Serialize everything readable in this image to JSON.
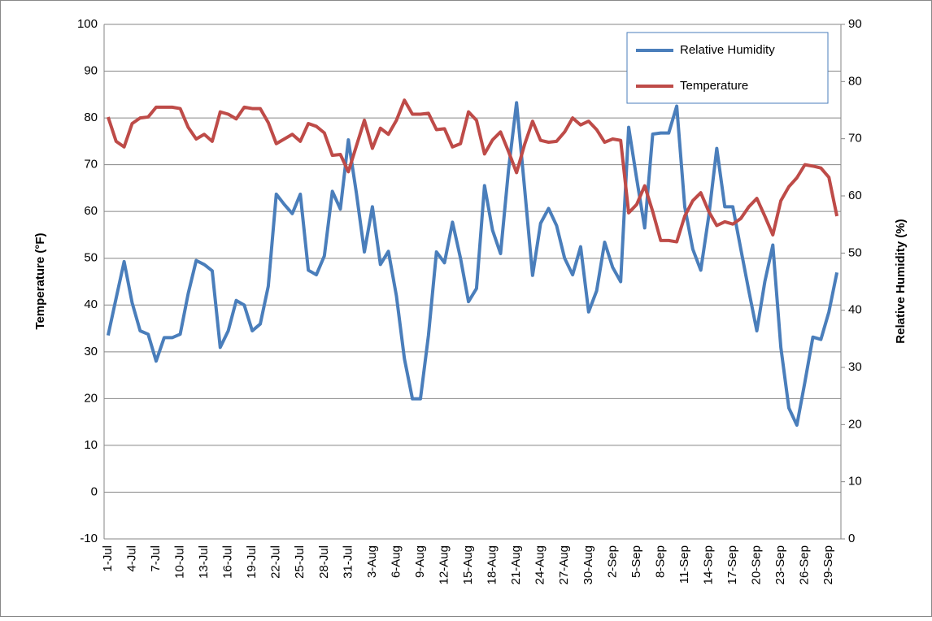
{
  "chart_data": {
    "type": "line",
    "categories": [
      "1-Jul",
      null,
      null,
      "4-Jul",
      null,
      null,
      "7-Jul",
      null,
      null,
      "10-Jul",
      null,
      null,
      "13-Jul",
      null,
      null,
      "16-Jul",
      null,
      null,
      "19-Jul",
      null,
      null,
      "22-Jul",
      null,
      null,
      "25-Jul",
      null,
      null,
      "28-Jul",
      null,
      null,
      "31-Jul",
      null,
      null,
      "3-Aug",
      null,
      null,
      "6-Aug",
      null,
      null,
      "9-Aug",
      null,
      null,
      "12-Aug",
      null,
      null,
      "15-Aug",
      null,
      null,
      "18-Aug",
      null,
      null,
      "21-Aug",
      null,
      null,
      "24-Aug",
      null,
      null,
      "27-Aug",
      null,
      null,
      "30-Aug",
      null,
      null,
      "2-Sep",
      null,
      null,
      "5-Sep",
      null,
      null,
      "8-Sep",
      null,
      null,
      "11-Sep",
      null,
      null,
      "14-Sep",
      null,
      null,
      "17-Sep",
      null,
      null,
      "20-Sep",
      null,
      null,
      "23-Sep",
      null,
      null,
      "26-Sep",
      null,
      null,
      "29-Sep",
      null
    ],
    "y_label": "Temperature (°F)",
    "y2_label": "Relative Humidity (%)",
    "ylim": [
      -10,
      100
    ],
    "yticks": [
      -10,
      0,
      10,
      20,
      30,
      40,
      50,
      60,
      70,
      80,
      90,
      100
    ],
    "y2lim": [
      0,
      90
    ],
    "y2ticks": [
      0,
      10,
      20,
      30,
      40,
      50,
      60,
      70,
      80,
      90
    ],
    "grid": true,
    "legend": "upper right",
    "series": [
      {
        "name": "Relative Humidity",
        "color": "#4a7ebb",
        "axis": "y2",
        "values": [
          35.6,
          42.1,
          48.5,
          41.3,
          36.4,
          35.8,
          31.1,
          35.2,
          35.2,
          35.8,
          42.9,
          48.7,
          48,
          46.9,
          33.5,
          36.4,
          41.7,
          40.9,
          36.4,
          37.6,
          44.2,
          60.3,
          58.5,
          56.9,
          60.3,
          47,
          46.2,
          49.5,
          60.8,
          57.7,
          69.8,
          60.5,
          50.2,
          58.1,
          48,
          50.3,
          42.5,
          31.5,
          24.5,
          24.5,
          35.6,
          50.2,
          48.3,
          55.4,
          49.1,
          41.5,
          43.8,
          61.8,
          54,
          49.9,
          64.6,
          76.3,
          61.4,
          46.1,
          55.2,
          57.8,
          54.8,
          49.1,
          46.2,
          51.1,
          39.7,
          43.4,
          51.9,
          47.5,
          45,
          72,
          63,
          54.4,
          70.8,
          71,
          71,
          75.7,
          58.1,
          50.7,
          47,
          56.5,
          68.3,
          58.1,
          58.1,
          50.7,
          43.4,
          36.4,
          45,
          51.4,
          33.5,
          22.9,
          19.9,
          27.4,
          35.3,
          34.9,
          39.7,
          46.6
        ]
      },
      {
        "name": "Temperature",
        "color": "#be4b48",
        "values": [
          80.2,
          75,
          73.8,
          78.8,
          80,
          80.2,
          82.3,
          82.3,
          82.3,
          82,
          78,
          75.5,
          76.5,
          75,
          81.3,
          80.8,
          79.8,
          82.3,
          82,
          82,
          79,
          74.5,
          75.5,
          76.5,
          75,
          78.8,
          78.2,
          76.8,
          72,
          72.2,
          68.5,
          74,
          79.5,
          73.5,
          77.8,
          76.5,
          79.5,
          83.8,
          80.8,
          80.8,
          81,
          77.5,
          77.7,
          73.8,
          74.5,
          81.3,
          79.5,
          72.3,
          75.3,
          77,
          72.8,
          68.3,
          74.3,
          79.3,
          75.2,
          74.8,
          75,
          77,
          80,
          78.5,
          79.3,
          77.5,
          74.8,
          75.5,
          75.2,
          59.7,
          61.5,
          65.5,
          60,
          53.8,
          53.8,
          53.5,
          59,
          62.3,
          64,
          60,
          57,
          57.8,
          57.3,
          58.5,
          61,
          62.8,
          59,
          55,
          62.3,
          65.3,
          67.2,
          70,
          69.7,
          69.3,
          67.3,
          59
        ]
      }
    ]
  }
}
